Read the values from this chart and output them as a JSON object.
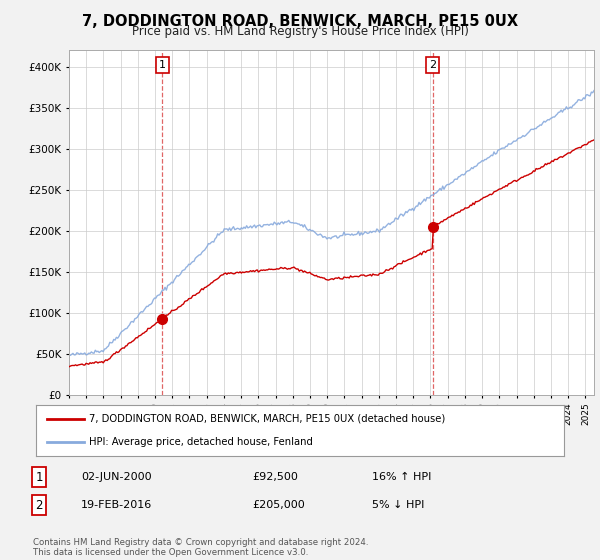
{
  "title": "7, DODDINGTON ROAD, BENWICK, MARCH, PE15 0UX",
  "subtitle": "Price paid vs. HM Land Registry's House Price Index (HPI)",
  "sale1_date": "02-JUN-2000",
  "sale1_price": 92500,
  "sale1_hpi": "16% ↑ HPI",
  "sale2_date": "19-FEB-2016",
  "sale2_price": 205000,
  "sale2_hpi": "5% ↓ HPI",
  "legend_line1": "7, DODDINGTON ROAD, BENWICK, MARCH, PE15 0UX (detached house)",
  "legend_line2": "HPI: Average price, detached house, Fenland",
  "footer": "Contains HM Land Registry data © Crown copyright and database right 2024.\nThis data is licensed under the Open Government Licence v3.0.",
  "line_color_sale": "#cc0000",
  "line_color_hpi": "#88aadd",
  "vline_color": "#cc0000",
  "ylim": [
    0,
    420000
  ],
  "yticks": [
    0,
    50000,
    100000,
    150000,
    200000,
    250000,
    300000,
    350000,
    400000
  ],
  "bg_color": "#f2f2f2",
  "plot_bg": "#ffffff"
}
